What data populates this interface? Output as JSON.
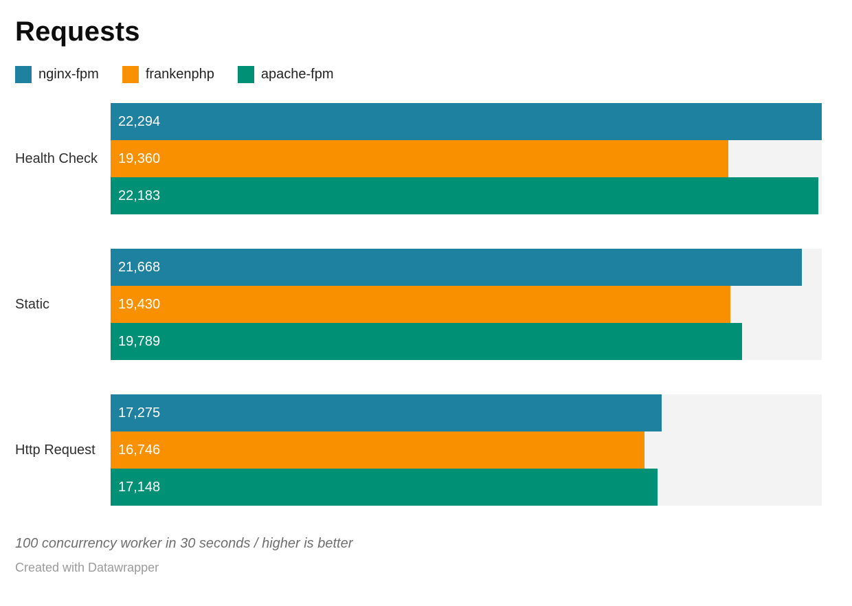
{
  "chart_data": {
    "type": "bar",
    "orientation": "horizontal",
    "title": "Requests",
    "categories": [
      "Health Check",
      "Static",
      "Http Request"
    ],
    "series": [
      {
        "name": "nginx-fpm",
        "color": "#1f81a0",
        "values": [
          22294,
          21668,
          17275
        ],
        "labels": [
          "22,294",
          "21,668",
          "17,275"
        ]
      },
      {
        "name": "frankenphp",
        "color": "#f99000",
        "values": [
          19360,
          19430,
          16746
        ],
        "labels": [
          "19,360",
          "19,430",
          "16,746"
        ]
      },
      {
        "name": "apache-fpm",
        "color": "#009076",
        "values": [
          22183,
          19789,
          17148
        ],
        "labels": [
          "22,183",
          "19,789",
          "17,148"
        ]
      }
    ],
    "xmax": 22294,
    "xlabel": "",
    "ylabel": "",
    "grid": false,
    "legend_position": "top",
    "track_color": "#f3f3f3",
    "notes": "100 concurrency worker in 30 seconds / higher is better",
    "credit": "Created with Datawrapper"
  }
}
